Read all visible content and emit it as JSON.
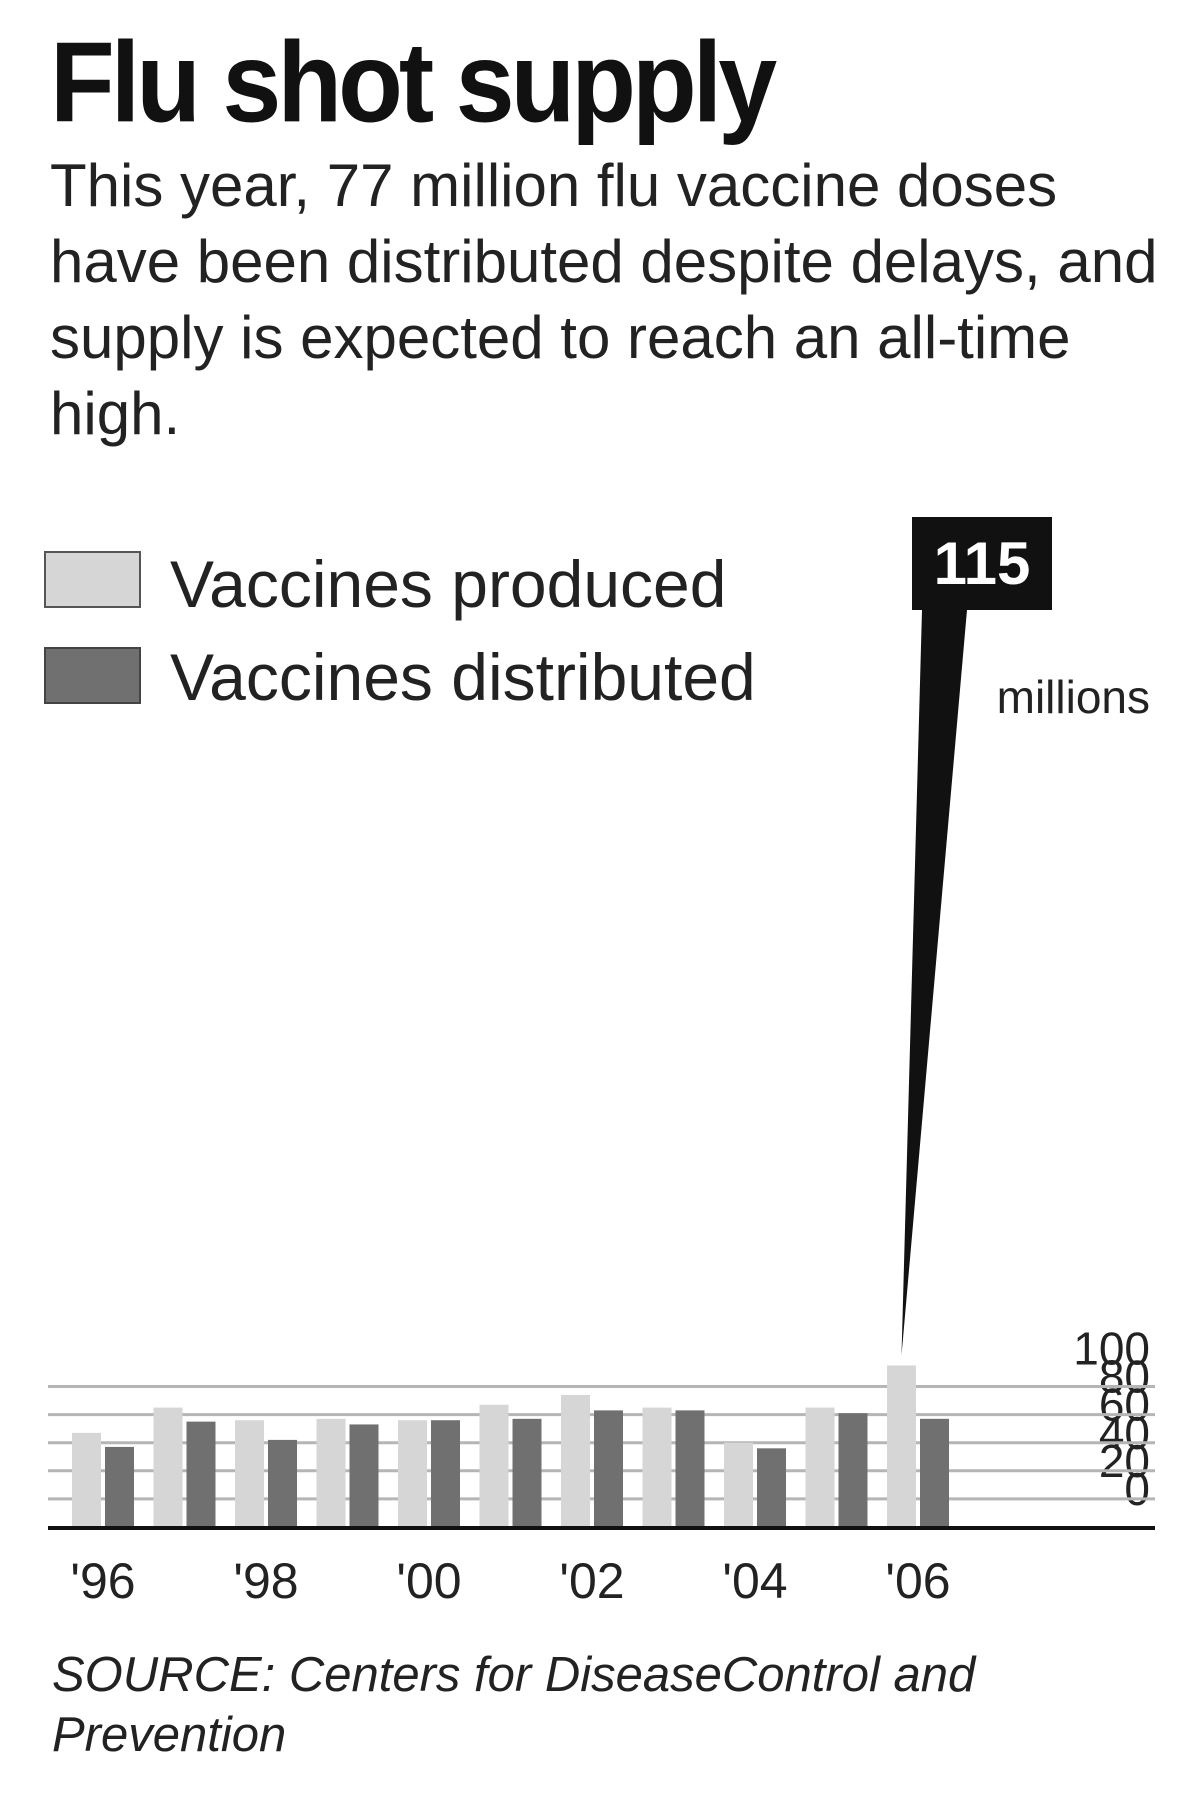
{
  "header": {
    "title": "Flu shot supply",
    "subtitle": "This year, 77 million flu vaccine doses have been distributed despite delays, and supply is expected to reach an all-time high."
  },
  "source": "SOURCE: Centers for DiseaseControl and Prevention",
  "colors": {
    "produced": "#d6d6d6",
    "distributed": "#707070",
    "gridline": "#b5b5b5",
    "text": "#222222",
    "callout": "#111111"
  },
  "chart_data": {
    "type": "bar",
    "unit_label": "millions",
    "x": [
      "1996",
      "1997",
      "1998",
      "1999",
      "2000",
      "2001",
      "2002",
      "2003",
      "2004",
      "2005",
      "2006"
    ],
    "x_tick_labels": [
      "'96",
      "'98",
      "'00",
      "'02",
      "'04",
      "'06"
    ],
    "x_tick_years": [
      "1996",
      "1998",
      "2000",
      "2002",
      "2004",
      "2006"
    ],
    "series": [
      {
        "name": "Vaccines produced",
        "values": [
          67,
          85,
          76,
          77,
          76,
          87,
          94,
          85,
          60,
          85,
          115
        ]
      },
      {
        "name": "Vaccines distributed",
        "values": [
          57,
          75,
          62,
          73,
          76,
          77,
          83,
          83,
          56,
          81,
          77
        ]
      }
    ],
    "ylim": [
      0,
      115
    ],
    "yticks": [
      0,
      20,
      40,
      60,
      80,
      100
    ],
    "grid": true,
    "legend_position": "top-left",
    "annotations": [
      {
        "x": "2006",
        "series": "Vaccines produced",
        "text": "115"
      }
    ]
  }
}
